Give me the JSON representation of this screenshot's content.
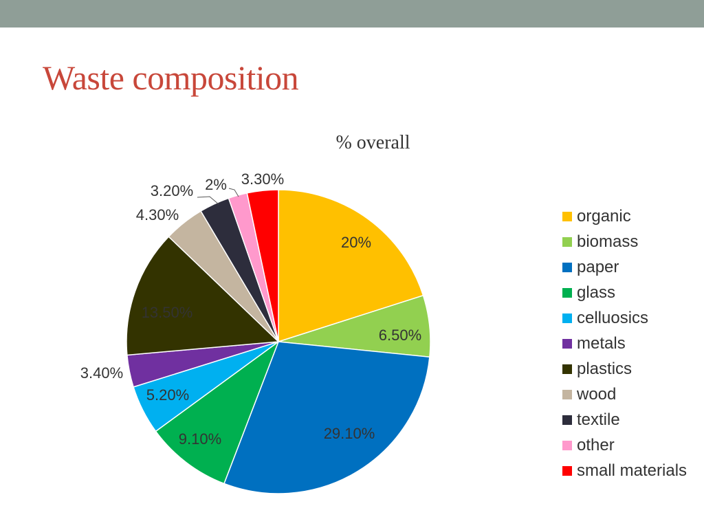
{
  "slide": {
    "title": "Waste composition"
  },
  "chart_data": {
    "type": "pie",
    "title": "% overall",
    "categories": [
      "organic",
      "biomass",
      "paper",
      "glass",
      "celluosics",
      "metals",
      "plastics",
      "wood",
      "textile",
      "other",
      "small materials"
    ],
    "values": [
      20,
      6.5,
      29.1,
      9.1,
      5.2,
      3.4,
      13.5,
      4.3,
      3.2,
      2,
      3.3
    ],
    "data_labels": [
      "20%",
      "6.50%",
      "29.10%",
      "9.10%",
      "5.20%",
      "3.40%",
      "13.50%",
      "4.30%",
      "3.20%",
      "2%",
      "3.30%"
    ],
    "colors": [
      "#ffc000",
      "#92d050",
      "#0070c0",
      "#00b050",
      "#00b0f0",
      "#7030a0",
      "#333300",
      "#c4b5a0",
      "#2d2d3c",
      "#ff99cc",
      "#ff0000"
    ],
    "legend_position": "right",
    "start_angle": "12 o'clock",
    "direction": "clockwise"
  }
}
